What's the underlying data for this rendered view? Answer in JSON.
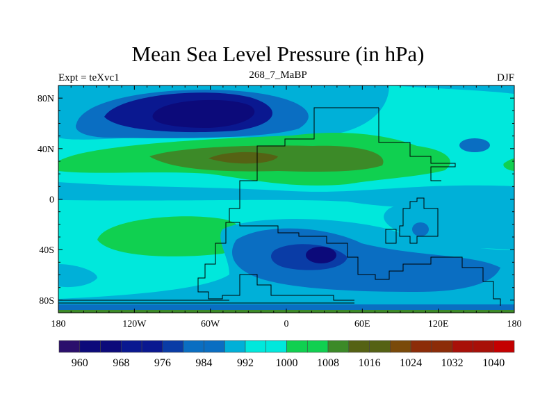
{
  "title": "Mean Sea Level Pressure (in hPa)",
  "left_string": "Expt = teXvc1",
  "center_string": "268_7_MaBP",
  "right_string": "DJF",
  "chart_data": {
    "type": "heatmap",
    "title": "Mean Sea Level Pressure (in hPa)",
    "xlabel": "",
    "ylabel": "",
    "xlim": [
      -180,
      180
    ],
    "ylim": [
      -90,
      90
    ],
    "x_ticks": [
      {
        "v": -180,
        "label": "180"
      },
      {
        "v": -120,
        "label": "120W"
      },
      {
        "v": -60,
        "label": "60W"
      },
      {
        "v": 0,
        "label": "0"
      },
      {
        "v": 60,
        "label": "60E"
      },
      {
        "v": 120,
        "label": "120E"
      },
      {
        "v": 180,
        "label": "180"
      }
    ],
    "y_ticks": [
      {
        "v": 80,
        "label": "80N"
      },
      {
        "v": 40,
        "label": "40N"
      },
      {
        "v": 0,
        "label": "0"
      },
      {
        "v": -40,
        "label": "40S"
      },
      {
        "v": -80,
        "label": "80S"
      }
    ],
    "colorbar": {
      "levels": [
        960,
        964,
        968,
        972,
        976,
        980,
        984,
        988,
        992,
        996,
        1000,
        1004,
        1008,
        1012,
        1016,
        1020,
        1024,
        1028,
        1032,
        1036,
        1040
      ],
      "labels": [
        "960",
        "968",
        "976",
        "984",
        "992",
        "1000",
        "1008",
        "1016",
        "1024",
        "1032",
        "1040"
      ],
      "colors": [
        "#2b0f6c",
        "#0c0a7a",
        "#0c0a7a",
        "#0a1890",
        "#0a1890",
        "#0a3ca6",
        "#0a6ec2",
        "#0a6ec2",
        "#00b0d8",
        "#00e8dc",
        "#00e8dc",
        "#10d050",
        "#10d050",
        "#3c8a28",
        "#556214",
        "#556214",
        "#7a4a0a",
        "#8c2c08",
        "#8c2c08",
        "#a81008",
        "#a81008",
        "#c40000"
      ]
    }
  }
}
